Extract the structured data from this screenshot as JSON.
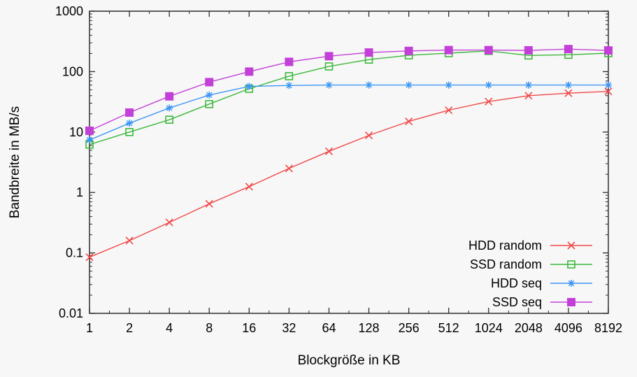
{
  "figure": {
    "background": "#f7f7f7",
    "axis_color": "#2d2d2d",
    "text_color": "#000000"
  },
  "chart_data": {
    "type": "line",
    "title": "",
    "xlabel": "Blockgröße in KB",
    "ylabel": "Bandbreite in MB/s",
    "x_scale": "log2",
    "y_scale": "log10",
    "xlim": [
      1,
      8192
    ],
    "ylim": [
      0.01,
      1000
    ],
    "x_tick_labels": [
      "1",
      "2",
      "4",
      "8",
      "16",
      "32",
      "64",
      "128",
      "256",
      "512",
      "1024",
      "2048",
      "4096",
      "8192"
    ],
    "y_tick_labels": [
      "0.01",
      "0.1",
      "1",
      "10",
      "100",
      "1000"
    ],
    "grid": false,
    "legend_position": "bottom-right",
    "x": [
      1,
      2,
      4,
      8,
      16,
      32,
      64,
      128,
      256,
      512,
      1024,
      2048,
      4096,
      8192
    ],
    "series": [
      {
        "name": "HDD random",
        "color": "#f04848",
        "marker": "x",
        "values": [
          0.085,
          0.16,
          0.32,
          0.65,
          1.25,
          2.5,
          4.8,
          8.8,
          15,
          23,
          32,
          40,
          44,
          47
        ]
      },
      {
        "name": "SSD random",
        "color": "#3cb83c",
        "marker": "open-square",
        "values": [
          6.2,
          10,
          16,
          29,
          52,
          84,
          122,
          158,
          186,
          202,
          220,
          185,
          190,
          202
        ]
      },
      {
        "name": "HDD seq",
        "color": "#3c96f5",
        "marker": "asterisk",
        "values": [
          7.4,
          14,
          25,
          41,
          57,
          59,
          60,
          60,
          60,
          60,
          60,
          60,
          60,
          60
        ]
      },
      {
        "name": "SSD seq",
        "color": "#c340d8",
        "marker": "filled-square",
        "values": [
          10.5,
          21,
          39,
          67,
          100,
          145,
          180,
          207,
          220,
          227,
          227,
          225,
          236,
          224
        ]
      }
    ]
  }
}
